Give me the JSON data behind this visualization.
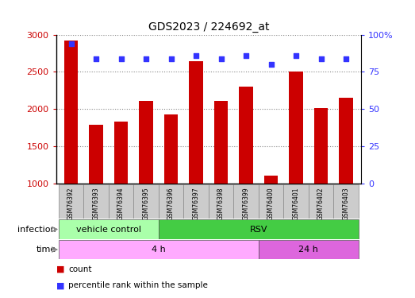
{
  "title": "GDS2023 / 224692_at",
  "samples": [
    "GSM76392",
    "GSM76393",
    "GSM76394",
    "GSM76395",
    "GSM76396",
    "GSM76397",
    "GSM76398",
    "GSM76399",
    "GSM76400",
    "GSM76401",
    "GSM76402",
    "GSM76403"
  ],
  "counts": [
    2920,
    1790,
    1830,
    2110,
    1930,
    2640,
    2110,
    2300,
    1110,
    2500,
    2010,
    2150
  ],
  "percentile_ranks": [
    94,
    84,
    84,
    84,
    84,
    86,
    84,
    86,
    80,
    86,
    84,
    84
  ],
  "ylim_left": [
    1000,
    3000
  ],
  "ylim_right": [
    0,
    100
  ],
  "yticks_left": [
    1000,
    1500,
    2000,
    2500,
    3000
  ],
  "yticks_right": [
    0,
    25,
    50,
    75,
    100
  ],
  "ytick_right_labels": [
    "0",
    "25",
    "50",
    "75",
    "100%"
  ],
  "bar_color": "#cc0000",
  "dot_color": "#3333ff",
  "infection_labels": [
    {
      "label": "vehicle control",
      "start": 0,
      "end": 4,
      "color": "#aaffaa"
    },
    {
      "label": "RSV",
      "start": 4,
      "end": 12,
      "color": "#44cc44"
    }
  ],
  "time_labels": [
    {
      "label": "4 h",
      "start": 0,
      "end": 8,
      "color": "#ffaaff"
    },
    {
      "label": "24 h",
      "start": 8,
      "end": 12,
      "color": "#dd66dd"
    }
  ],
  "legend_count_label": "count",
  "legend_pct_label": "percentile rank within the sample",
  "xlabel_infection": "infection",
  "xlabel_time": "time",
  "grid_color": "#888888",
  "bar_width": 0.55,
  "sample_box_color": "#cccccc",
  "n_samples": 12
}
